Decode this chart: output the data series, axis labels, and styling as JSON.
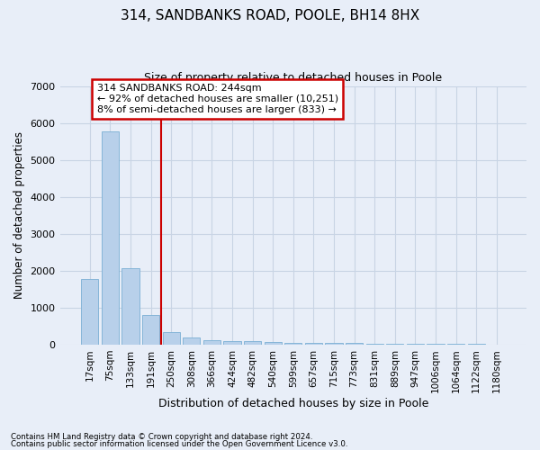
{
  "title_line1": "314, SANDBANKS ROAD, POOLE, BH14 8HX",
  "title_line2": "Size of property relative to detached houses in Poole",
  "xlabel": "Distribution of detached houses by size in Poole",
  "ylabel": "Number of detached properties",
  "bar_color": "#b8d0ea",
  "bar_edge_color": "#7aafd4",
  "categories": [
    "17sqm",
    "75sqm",
    "133sqm",
    "191sqm",
    "250sqm",
    "308sqm",
    "366sqm",
    "424sqm",
    "482sqm",
    "540sqm",
    "599sqm",
    "657sqm",
    "715sqm",
    "773sqm",
    "831sqm",
    "889sqm",
    "947sqm",
    "1006sqm",
    "1064sqm",
    "1122sqm",
    "1180sqm"
  ],
  "values": [
    1780,
    5780,
    2060,
    800,
    340,
    190,
    120,
    100,
    100,
    80,
    50,
    50,
    50,
    40,
    30,
    25,
    20,
    15,
    12,
    10,
    8
  ],
  "ylim": [
    0,
    7000
  ],
  "yticks": [
    0,
    1000,
    2000,
    3000,
    4000,
    5000,
    6000,
    7000
  ],
  "vline_x": 3.5,
  "annotation_text_line1": "314 SANDBANKS ROAD: 244sqm",
  "annotation_text_line2": "← 92% of detached houses are smaller (10,251)",
  "annotation_text_line3": "8% of semi-detached houses are larger (833) →",
  "annotation_box_color": "#ffffff",
  "annotation_box_edge": "#cc0000",
  "vline_color": "#cc0000",
  "grid_color": "#c8d4e4",
  "background_color": "#e8eef8",
  "footnote1": "Contains HM Land Registry data © Crown copyright and database right 2024.",
  "footnote2": "Contains public sector information licensed under the Open Government Licence v3.0."
}
